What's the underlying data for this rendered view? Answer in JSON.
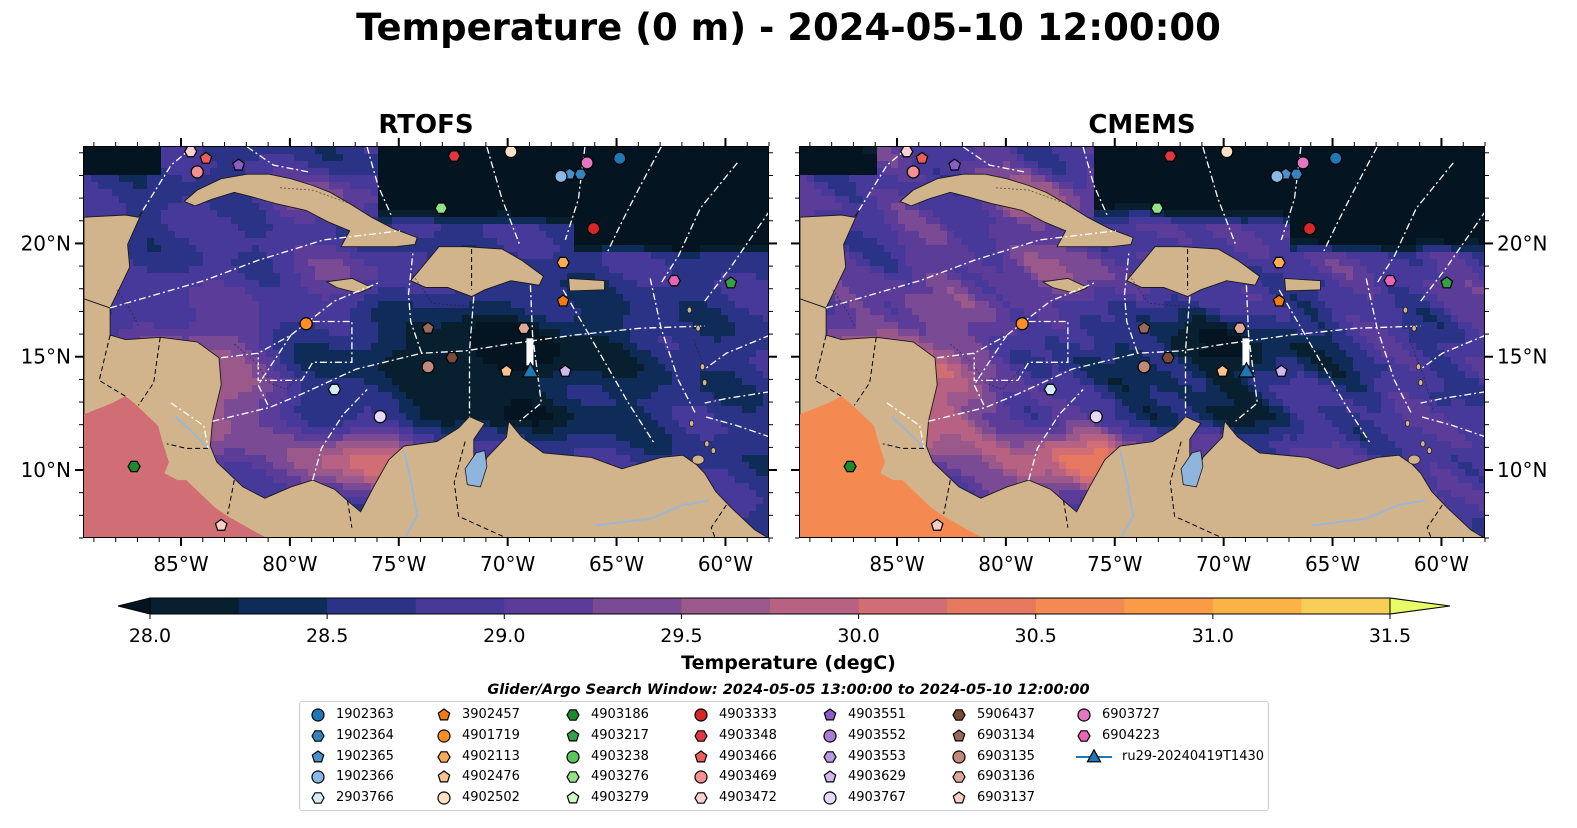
{
  "figure": {
    "title": "Temperature (0 m) - 2024-05-10 12:00:00",
    "window_text": "Glider/Argo Search Window: 2024-05-05 13:00:00 to 2024-05-10 12:00:00"
  },
  "panels": [
    {
      "title": "RTOFS"
    },
    {
      "title": "CMEMS"
    }
  ],
  "map_extent": {
    "lon": [
      -89.5,
      -58.0
    ],
    "lat": [
      7.0,
      24.3
    ]
  },
  "axes": {
    "x_ticks": [
      "85°W",
      "80°W",
      "75°W",
      "70°W",
      "65°W",
      "60°W"
    ],
    "x_tick_values": [
      -85,
      -80,
      -75,
      -70,
      -65,
      -60
    ],
    "y_ticks": [
      "20°N",
      "15°N",
      "10°N"
    ],
    "y_tick_values": [
      20,
      15,
      10
    ]
  },
  "colorbar": {
    "label": "Temperature (degC)",
    "range": [
      28.0,
      31.5
    ],
    "step": 0.25,
    "extend": "both",
    "tick_labels": [
      "28.0",
      "28.5",
      "29.0",
      "29.5",
      "30.0",
      "30.5",
      "31.0",
      "31.5"
    ],
    "tick_values": [
      28.0,
      28.5,
      29.0,
      29.5,
      30.0,
      30.5,
      31.0,
      31.5
    ],
    "colors": [
      "#071f2e",
      "#0f2c58",
      "#2a3385",
      "#46399a",
      "#5b3d99",
      "#7a4b94",
      "#9a598a",
      "#b76282",
      "#d16d74",
      "#e6785f",
      "#f48952",
      "#f99b47",
      "#fbb246",
      "#f5cd57"
    ],
    "under_color": "#041521",
    "over_color": "#e8fc68"
  },
  "colors": {
    "land": "#d2b48c",
    "lake": "#8fb5dd",
    "boundary": "#ffffff"
  },
  "legend": [
    {
      "label": "1902363",
      "marker": "circle",
      "color": "#1f77b4"
    },
    {
      "label": "1902364",
      "marker": "hexagon",
      "color": "#3583c1"
    },
    {
      "label": "1902365",
      "marker": "pentagon",
      "color": "#4b8fcc"
    },
    {
      "label": "1902366",
      "marker": "circle",
      "color": "#8ab9e6"
    },
    {
      "label": "2903766",
      "marker": "hexagon",
      "color": "#d4ecf7"
    },
    {
      "label": "3902457",
      "marker": "pentagon",
      "color": "#f27c12"
    },
    {
      "label": "4901719",
      "marker": "circle",
      "color": "#fb8f26"
    },
    {
      "label": "4902113",
      "marker": "hexagon",
      "color": "#fbaa55"
    },
    {
      "label": "4902476",
      "marker": "pentagon",
      "color": "#fbc28e"
    },
    {
      "label": "4902502",
      "marker": "circle",
      "color": "#fde2c6"
    },
    {
      "label": "4903186",
      "marker": "hexagon",
      "color": "#1e8a2a"
    },
    {
      "label": "4903217",
      "marker": "pentagon",
      "color": "#34a048"
    },
    {
      "label": "4903238",
      "marker": "circle",
      "color": "#5cc45c"
    },
    {
      "label": "4903276",
      "marker": "hexagon",
      "color": "#93e28a"
    },
    {
      "label": "4903279",
      "marker": "pentagon",
      "color": "#d4f7c8"
    },
    {
      "label": "4903333",
      "marker": "circle",
      "color": "#d62728"
    },
    {
      "label": "4903348",
      "marker": "hexagon",
      "color": "#e0383d"
    },
    {
      "label": "4903466",
      "marker": "pentagon",
      "color": "#ee5c5c"
    },
    {
      "label": "4903469",
      "marker": "circle",
      "color": "#f79090"
    },
    {
      "label": "4903472",
      "marker": "hexagon",
      "color": "#fbd0d0"
    },
    {
      "label": "4903551",
      "marker": "pentagon",
      "color": "#8c5cc7"
    },
    {
      "label": "4903552",
      "marker": "circle",
      "color": "#a67dd4"
    },
    {
      "label": "4903553",
      "marker": "hexagon",
      "color": "#bb98e2"
    },
    {
      "label": "4903629",
      "marker": "pentagon",
      "color": "#d0b8ee"
    },
    {
      "label": "4903767",
      "marker": "circle",
      "color": "#e6d8f8"
    },
    {
      "label": "5906437",
      "marker": "hexagon",
      "color": "#7a4a3a"
    },
    {
      "label": "6903134",
      "marker": "pentagon",
      "color": "#9a6a58"
    },
    {
      "label": "6903135",
      "marker": "circle",
      "color": "#c08a7a"
    },
    {
      "label": "6903136",
      "marker": "hexagon",
      "color": "#dda898"
    },
    {
      "label": "6903137",
      "marker": "pentagon",
      "color": "#f6d0c4"
    },
    {
      "label": "6903727",
      "marker": "circle",
      "color": "#e377c2"
    },
    {
      "label": "6904223",
      "marker": "hexagon",
      "color": "#e864b8"
    },
    {
      "label": "ru29-20240419T1430",
      "marker": "glider",
      "color": "#1f77b4"
    }
  ],
  "floats": [
    {
      "id": "1902363",
      "lon": -64.9,
      "lat": 23.8
    },
    {
      "id": "1902364",
      "lon": -66.7,
      "lat": 23.1
    },
    {
      "id": "1902365",
      "lon": -67.2,
      "lat": 23.1
    },
    {
      "id": "1902366",
      "lon": -67.6,
      "lat": 23.0
    },
    {
      "id": "2903766",
      "lon": -78.0,
      "lat": 13.6
    },
    {
      "id": "3902457",
      "lon": -67.5,
      "lat": 17.5
    },
    {
      "id": "4901719",
      "lon": -79.3,
      "lat": 16.5
    },
    {
      "id": "4902113",
      "lon": -67.5,
      "lat": 19.2
    },
    {
      "id": "4902476",
      "lon": -70.1,
      "lat": 14.4
    },
    {
      "id": "4902502",
      "lon": -69.9,
      "lat": 24.1
    },
    {
      "id": "4903186",
      "lon": -87.2,
      "lat": 10.2
    },
    {
      "id": "4903217",
      "lon": -59.8,
      "lat": 18.3
    },
    {
      "id": "4903276",
      "lon": -73.1,
      "lat": 21.6
    },
    {
      "id": "4903333",
      "lon": -66.1,
      "lat": 20.7
    },
    {
      "id": "4903348",
      "lon": -72.5,
      "lat": 23.9
    },
    {
      "id": "4903466",
      "lon": -83.9,
      "lat": 23.8
    },
    {
      "id": "4903469",
      "lon": -84.3,
      "lat": 23.2
    },
    {
      "id": "4903472",
      "lon": -84.6,
      "lat": 24.1
    },
    {
      "id": "4903551",
      "lon": -82.4,
      "lat": 23.5
    },
    {
      "id": "4903629",
      "lon": -67.4,
      "lat": 14.4
    },
    {
      "id": "4903767",
      "lon": -75.9,
      "lat": 12.4
    },
    {
      "id": "5906437",
      "lon": -72.6,
      "lat": 15.0
    },
    {
      "id": "6903134",
      "lon": -73.7,
      "lat": 16.3
    },
    {
      "id": "6903135",
      "lon": -73.7,
      "lat": 14.6
    },
    {
      "id": "6903136",
      "lon": -69.3,
      "lat": 16.3
    },
    {
      "id": "6903137",
      "lon": -83.2,
      "lat": 7.6
    },
    {
      "id": "6903727",
      "lon": -66.4,
      "lat": 23.6
    },
    {
      "id": "6904223",
      "lon": -62.4,
      "lat": 18.4
    }
  ],
  "glider": {
    "id": "ru29-20240419T1430",
    "lon": -69.0,
    "lat": 14.4
  }
}
